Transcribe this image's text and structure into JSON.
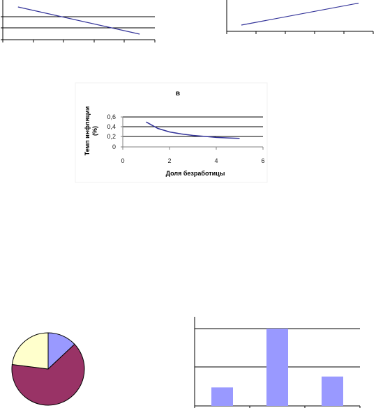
{
  "chart_data": [
    {
      "type": "line",
      "title": "",
      "xlabel": "",
      "ylabel": "",
      "x": [
        0.5,
        4.5
      ],
      "series": [
        {
          "values": [
            4.7,
            0.8
          ]
        }
      ],
      "xlim": [
        0,
        5
      ],
      "ylim": [
        0,
        5
      ],
      "grid": true,
      "tick_labels_visible": false
    },
    {
      "type": "line",
      "title": "",
      "xlabel": "",
      "ylabel": "",
      "x": [
        0.5,
        4.5
      ],
      "series": [
        {
          "values": [
            1.0,
            4.5
          ]
        }
      ],
      "xlim": [
        0,
        5
      ],
      "ylim": [
        0,
        5
      ],
      "grid": false,
      "tick_labels_visible": false
    },
    {
      "type": "line",
      "title": "в",
      "xlabel": "Доля безработицы",
      "ylabel": "Темп инфляции (%)",
      "ylabel_lines": [
        "Темп инфляции",
        "(%)"
      ],
      "x": [
        1,
        1.5,
        2,
        2.5,
        3,
        3.5,
        4,
        4.5,
        5
      ],
      "series": [
        {
          "values": [
            0.5,
            0.37,
            0.3,
            0.26,
            0.23,
            0.21,
            0.19,
            0.18,
            0.17
          ]
        }
      ],
      "xlim": [
        0,
        6
      ],
      "ylim": [
        0,
        0.6
      ],
      "xticks": [
        "0",
        "2",
        "4",
        "6"
      ],
      "yticks": [
        "0",
        "0,2",
        "0,4",
        "0,6"
      ],
      "grid": true
    },
    {
      "type": "pie",
      "title": "",
      "values": [
        13,
        64,
        23
      ],
      "colors": [
        "#9999ff",
        "#993366",
        "#ffffcc"
      ]
    },
    {
      "type": "bar",
      "title": "",
      "categories": [
        "",
        "",
        ""
      ],
      "values": [
        1.2,
        5.0,
        1.9
      ],
      "ylim": [
        0,
        5.0
      ],
      "color": "#9999ff",
      "grid": true
    }
  ]
}
